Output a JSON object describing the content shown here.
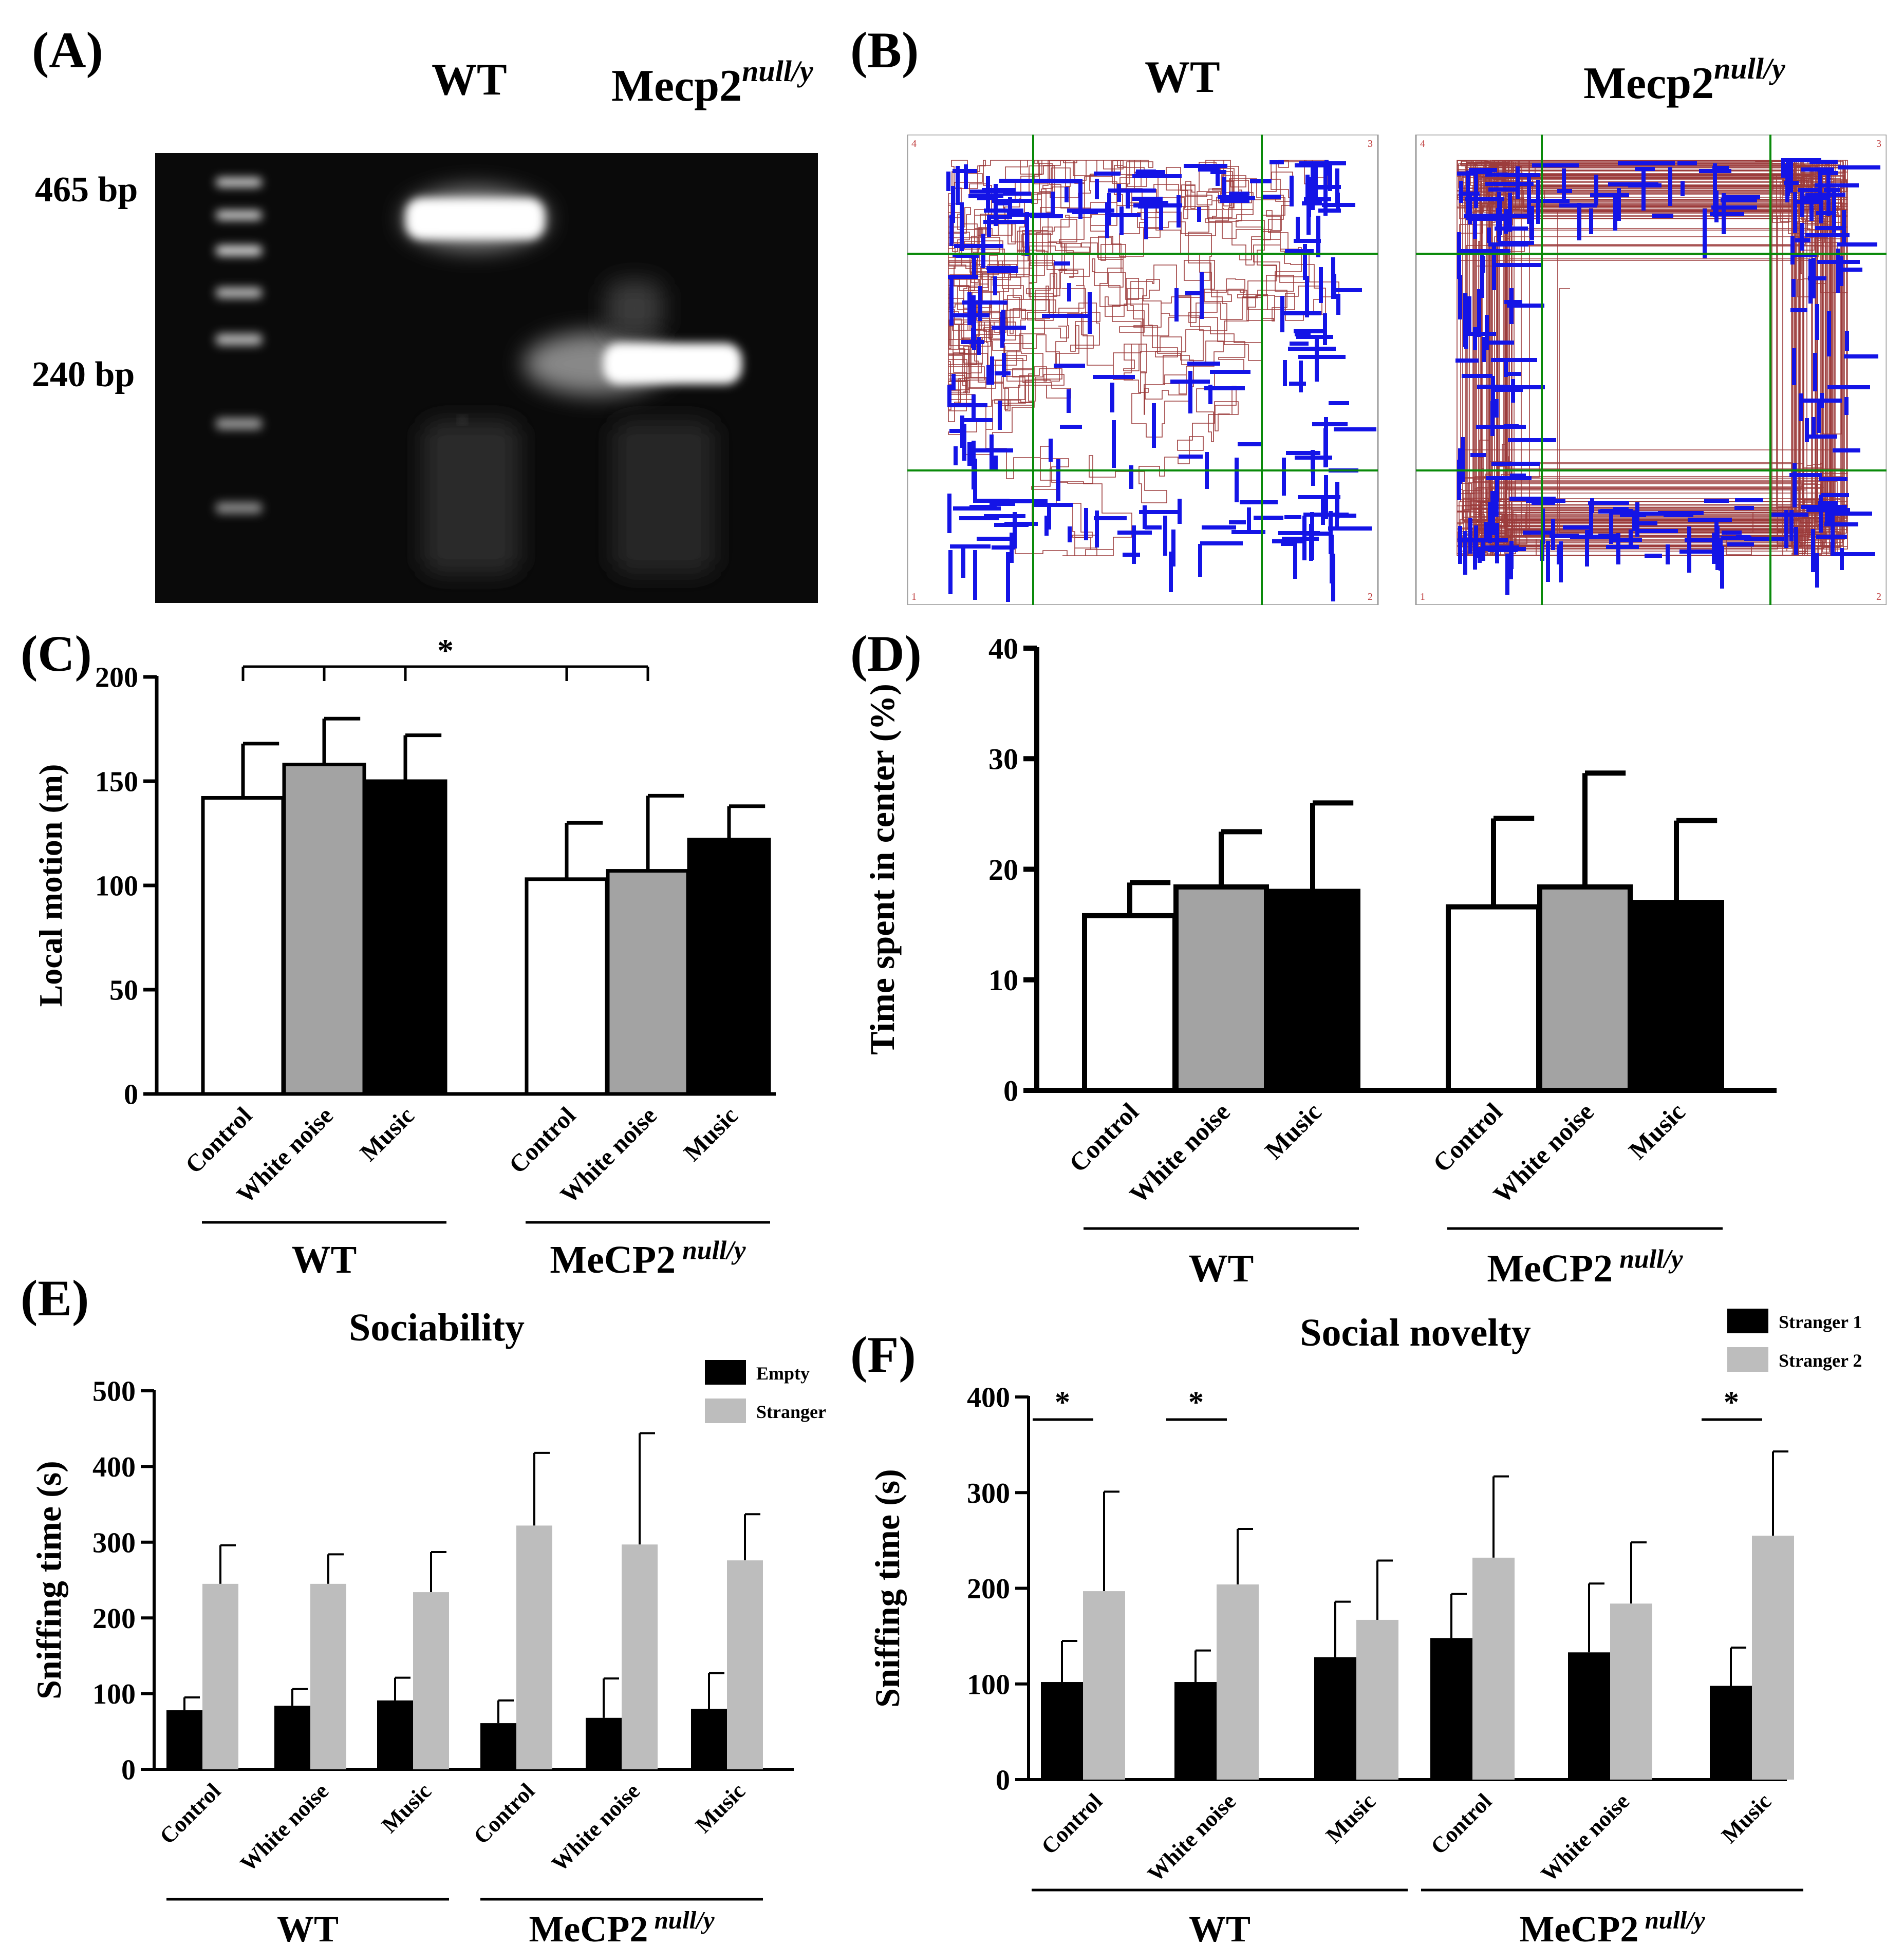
{
  "panels": {
    "A": {
      "letter": "(A)",
      "lane_wt": "WT",
      "lane_mecp2_base": "Mecp2",
      "lane_mecp2_sup": "null/y",
      "marker_high": "465 bp",
      "marker_low": "240 bp"
    },
    "B": {
      "letter": "(B)",
      "title_wt": "WT",
      "title_mecp2_base": "Mecp2",
      "title_mecp2_sup": "null/y",
      "corner_labels": [
        "4",
        "3",
        "1",
        "2"
      ]
    },
    "C": {
      "letter": "(C)"
    },
    "D": {
      "letter": "(D)"
    },
    "E": {
      "letter": "(E)"
    },
    "F": {
      "letter": "(F)"
    }
  },
  "chart_data": [
    {
      "id": "C",
      "type": "bar",
      "ylabel": "Local motion (m)",
      "ylim": [
        0,
        200
      ],
      "yticks": [
        0,
        50,
        100,
        150,
        200
      ],
      "categories": [
        "Control",
        "White noise",
        "Music",
        "Control",
        "White noise",
        "Music"
      ],
      "groups": [
        {
          "label": "WT",
          "label_sup": ""
        },
        {
          "label": "MeCP2",
          "label_sup": "null/y"
        }
      ],
      "values": [
        142,
        158,
        150,
        103,
        107,
        122
      ],
      "errors": [
        26,
        22,
        22,
        27,
        36,
        16
      ],
      "colors": [
        "#ffffff",
        "#a3a3a3",
        "#000000",
        "#ffffff",
        "#a3a3a3",
        "#000000"
      ],
      "significance": [
        {
          "label": "*",
          "bars": [
            0,
            1,
            2,
            3,
            4
          ]
        }
      ]
    },
    {
      "id": "D",
      "type": "bar",
      "ylabel": "Time spent in center (%)",
      "ylim": [
        0,
        40
      ],
      "yticks": [
        0,
        10,
        20,
        30,
        40
      ],
      "categories": [
        "Control",
        "White noise",
        "Music",
        "Control",
        "White noise",
        "Music"
      ],
      "groups": [
        {
          "label": "WT",
          "label_sup": ""
        },
        {
          "label": "MeCP2",
          "label_sup": "null/y"
        }
      ],
      "values": [
        15.8,
        18.4,
        18.0,
        16.6,
        18.4,
        17.0
      ],
      "errors": [
        3.0,
        5.0,
        8.0,
        8.0,
        10.3,
        7.4
      ],
      "colors": [
        "#ffffff",
        "#a3a3a3",
        "#000000",
        "#ffffff",
        "#a3a3a3",
        "#000000"
      ]
    },
    {
      "id": "E",
      "type": "bar",
      "title": "Sociability",
      "ylabel": "Sniffing time (s)",
      "ylim": [
        0,
        500
      ],
      "yticks": [
        0,
        100,
        200,
        300,
        400,
        500
      ],
      "categories": [
        "Control",
        "White noise",
        "Music",
        "Control",
        "White noise",
        "Music"
      ],
      "groups": [
        {
          "label": "WT",
          "label_sup": ""
        },
        {
          "label": "MeCP2",
          "label_sup": "null/y"
        }
      ],
      "series": [
        {
          "name": "Empty",
          "color": "#000000",
          "values": [
            78,
            84,
            91,
            61,
            68,
            80
          ],
          "errors": [
            17,
            22,
            30,
            30,
            52,
            47
          ]
        },
        {
          "name": "Stranger",
          "color": "#bdbdbd",
          "values": [
            245,
            245,
            234,
            322,
            297,
            276
          ],
          "errors": [
            51,
            39,
            53,
            96,
            147,
            61
          ]
        }
      ],
      "legend": "top-right"
    },
    {
      "id": "F",
      "type": "bar",
      "title": "Social novelty",
      "ylabel": "Sniffing time (s)",
      "ylim": [
        0,
        400
      ],
      "yticks": [
        0,
        100,
        200,
        300,
        400
      ],
      "categories": [
        "Control",
        "White noise",
        "Music",
        "Control",
        "White noise",
        "Music"
      ],
      "groups": [
        {
          "label": "WT",
          "label_sup": ""
        },
        {
          "label": "MeCP2",
          "label_sup": "null/y"
        }
      ],
      "series": [
        {
          "name": "Stranger 1",
          "color": "#000000",
          "values": [
            102,
            102,
            128,
            148,
            133,
            98
          ],
          "errors": [
            43,
            33,
            58,
            46,
            72,
            40
          ]
        },
        {
          "name": "Stranger 2",
          "color": "#bdbdbd",
          "values": [
            197,
            204,
            167,
            232,
            184,
            255
          ],
          "errors": [
            104,
            58,
            62,
            85,
            64,
            88
          ]
        }
      ],
      "significance": [
        {
          "label": "*",
          "group_index": 0
        },
        {
          "label": "*",
          "group_index": 1
        },
        {
          "label": "*",
          "group_index": 5
        }
      ],
      "legend": "top-right"
    }
  ]
}
